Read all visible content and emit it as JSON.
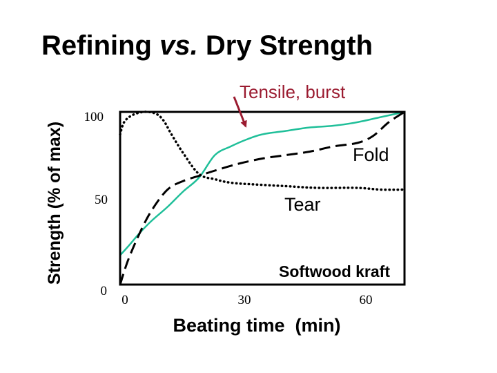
{
  "title": {
    "part1": "Refining ",
    "part2": "vs.",
    "part3": " Dry Strength"
  },
  "chart_data": {
    "type": "line",
    "xlabel": "Beating time  (min)",
    "ylabel": "Strength (% of max)",
    "xlim": [
      0,
      72
    ],
    "ylim": [
      0,
      100
    ],
    "xticks": [
      "0",
      "30",
      "60"
    ],
    "yticks": [
      "0",
      "50",
      "100"
    ],
    "annotation": "Softwood kraft",
    "colors": {
      "tensile": "#1fbf99",
      "arrow": "#9b1b30",
      "axes": "#000000"
    },
    "series": [
      {
        "name": "Tensile, burst",
        "style": "solid",
        "x": [
          0,
          2,
          5,
          8,
          12,
          16,
          20,
          24,
          28,
          32,
          36,
          42,
          48,
          54,
          60,
          66,
          72
        ],
        "y": [
          17,
          22,
          30,
          37,
          45,
          54,
          62,
          75,
          80,
          84,
          87,
          89,
          91,
          92,
          94,
          97,
          100
        ]
      },
      {
        "name": "Fold",
        "style": "dashed",
        "x": [
          0,
          2,
          5,
          8,
          12,
          16,
          20,
          24,
          30,
          36,
          42,
          48,
          54,
          60,
          64,
          68,
          72
        ],
        "y": [
          0,
          14,
          30,
          43,
          55,
          60,
          63,
          66,
          70,
          73,
          75,
          77,
          80,
          82,
          86,
          94,
          100
        ]
      },
      {
        "name": "Tear",
        "style": "dotted",
        "x": [
          0,
          1,
          3,
          6,
          9,
          11,
          13,
          16,
          20,
          24,
          28,
          34,
          42,
          50,
          60,
          66,
          72
        ],
        "y": [
          87,
          94,
          98,
          100,
          99,
          95,
          87,
          76,
          64,
          61,
          59,
          58,
          57,
          56,
          56,
          55,
          55
        ]
      }
    ],
    "labels": {
      "tensile": "Tensile, burst",
      "fold": "Fold",
      "tear": "Tear"
    }
  }
}
